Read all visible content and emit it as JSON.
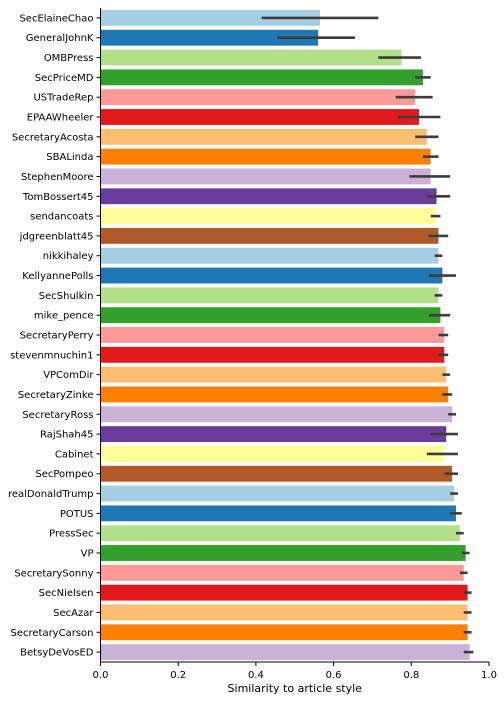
{
  "chart_data": {
    "type": "bar",
    "orientation": "horizontal",
    "xlabel": "Similarity to article style",
    "xlim": [
      0,
      1.0
    ],
    "xticks": [
      "0.0",
      "0.2",
      "0.4",
      "0.6",
      "0.8",
      "1.0"
    ],
    "grid": false,
    "categories": [
      "SecElaineChao",
      "GeneralJohnK",
      "OMBPress",
      "SecPriceMD",
      "USTradeRep",
      "EPAAWheeler",
      "SecretaryAcosta",
      "SBALinda",
      "StephenMoore",
      "TomBossert45",
      "sendancoats",
      "jdgreenblatt45",
      "nikkihaley",
      "KellyannePolls",
      "SecShulkin",
      "mike_pence",
      "SecretaryPerry",
      "stevenmnuchin1",
      "VPComDir",
      "SecretaryZinke",
      "SecretaryRoss",
      "RajShah45",
      "Cabinet",
      "SecPompeo",
      "realDonaldTrump",
      "POTUS",
      "PressSec",
      "VP",
      "SecretarySonny",
      "SecNielsen",
      "SecAzar",
      "SecretaryCarson",
      "BetsyDeVosED"
    ],
    "values": [
      0.565,
      0.56,
      0.775,
      0.83,
      0.81,
      0.82,
      0.84,
      0.85,
      0.85,
      0.865,
      0.865,
      0.87,
      0.87,
      0.88,
      0.87,
      0.875,
      0.885,
      0.885,
      0.89,
      0.895,
      0.905,
      0.89,
      0.885,
      0.905,
      0.91,
      0.915,
      0.925,
      0.94,
      0.935,
      0.945,
      0.945,
      0.945,
      0.95
    ],
    "ci_low": [
      0.415,
      0.455,
      0.715,
      0.81,
      0.76,
      0.765,
      0.81,
      0.83,
      0.795,
      0.84,
      0.85,
      0.845,
      0.86,
      0.845,
      0.86,
      0.845,
      0.87,
      0.87,
      0.88,
      0.88,
      0.895,
      0.85,
      0.84,
      0.885,
      0.9,
      0.9,
      0.915,
      0.93,
      0.925,
      0.935,
      0.935,
      0.935,
      0.935
    ],
    "ci_high": [
      0.715,
      0.655,
      0.825,
      0.85,
      0.855,
      0.875,
      0.87,
      0.87,
      0.9,
      0.9,
      0.875,
      0.895,
      0.88,
      0.915,
      0.88,
      0.9,
      0.895,
      0.895,
      0.9,
      0.905,
      0.915,
      0.92,
      0.92,
      0.92,
      0.92,
      0.93,
      0.935,
      0.95,
      0.945,
      0.955,
      0.955,
      0.955,
      0.96
    ],
    "colors": [
      "#a6cee3",
      "#1f78b4",
      "#b2df8a",
      "#33a02c",
      "#fb9a99",
      "#e31a1c",
      "#fdbf6f",
      "#ff7f00",
      "#cab2d6",
      "#6a3d9a",
      "#ffff99",
      "#b15928"
    ],
    "errorbar_color": "#3d3d3d"
  }
}
